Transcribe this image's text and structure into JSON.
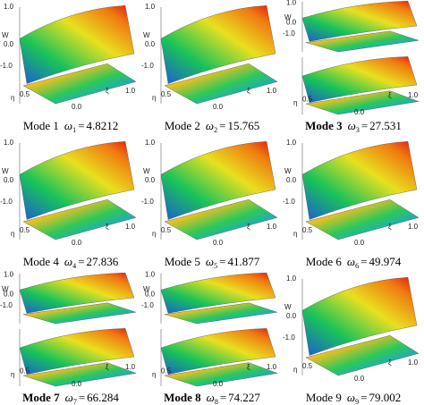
{
  "figure": {
    "panels": [
      {
        "mode": "Mode 1",
        "symbol": "ω",
        "subscript": "1",
        "equals": "=",
        "value": 4.8212,
        "bold": false,
        "split": false
      },
      {
        "mode": "Mode 2",
        "symbol": "ω",
        "subscript": "2",
        "equals": "=",
        "value": 15.765,
        "bold": false,
        "split": false
      },
      {
        "mode": "Mode 3",
        "symbol": "ω",
        "subscript": "3",
        "equals": "=",
        "value": 27.531,
        "bold": true,
        "split": true
      },
      {
        "mode": "Mode 4",
        "symbol": "ω",
        "subscript": "4",
        "equals": "=",
        "value": 27.836,
        "bold": false,
        "split": false
      },
      {
        "mode": "Mode 5",
        "symbol": "ω",
        "subscript": "5",
        "equals": "=",
        "value": 41.877,
        "bold": false,
        "split": false
      },
      {
        "mode": "Mode 6",
        "symbol": "ω",
        "subscript": "6",
        "equals": "=",
        "value": 49.974,
        "bold": false,
        "split": false
      },
      {
        "mode": "Mode 7",
        "symbol": "ω",
        "subscript": "7",
        "equals": "=",
        "value": 66.284,
        "bold": true,
        "split": true
      },
      {
        "mode": "Mode 8",
        "symbol": "ω",
        "subscript": "8",
        "equals": "=",
        "value": 74.227,
        "bold": true,
        "split": true
      },
      {
        "mode": "Mode 9",
        "symbol": "ω",
        "subscript": "9",
        "equals": "=",
        "value": 79.002,
        "bold": false,
        "split": false
      }
    ],
    "axis_labels": [
      "1.0",
      "W",
      "0.0",
      "-1.0",
      "η",
      "0.5",
      "0.0",
      "ξ",
      "1.0"
    ]
  }
}
